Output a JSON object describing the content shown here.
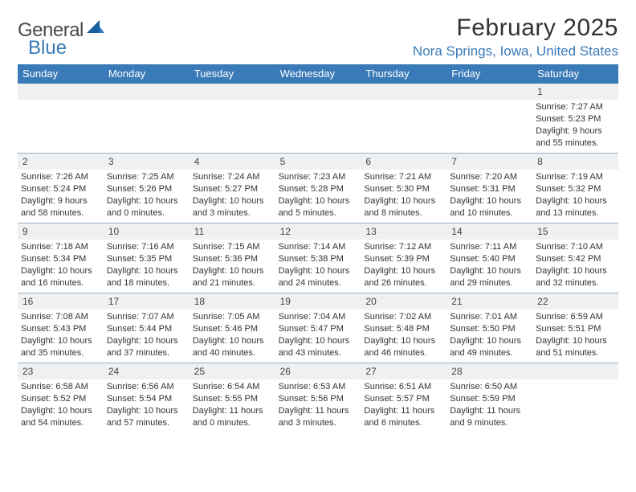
{
  "brand": {
    "word1": "General",
    "word2": "Blue"
  },
  "title": "February 2025",
  "location": "Nora Springs, Iowa, United States",
  "colors": {
    "header_bg": "#3a7ab8",
    "header_text": "#ffffff",
    "daynum_bg": "#eef0f2",
    "text": "#333333",
    "accent": "#3a7ab8",
    "divider": "#9aaec2"
  },
  "day_names": [
    "Sunday",
    "Monday",
    "Tuesday",
    "Wednesday",
    "Thursday",
    "Friday",
    "Saturday"
  ],
  "weeks": [
    [
      null,
      null,
      null,
      null,
      null,
      null,
      {
        "n": "1",
        "sunrise": "7:27 AM",
        "sunset": "5:23 PM",
        "day_h": "9",
        "day_m": "55"
      }
    ],
    [
      {
        "n": "2",
        "sunrise": "7:26 AM",
        "sunset": "5:24 PM",
        "day_h": "9",
        "day_m": "58"
      },
      {
        "n": "3",
        "sunrise": "7:25 AM",
        "sunset": "5:26 PM",
        "day_h": "10",
        "day_m": "0"
      },
      {
        "n": "4",
        "sunrise": "7:24 AM",
        "sunset": "5:27 PM",
        "day_h": "10",
        "day_m": "3"
      },
      {
        "n": "5",
        "sunrise": "7:23 AM",
        "sunset": "5:28 PM",
        "day_h": "10",
        "day_m": "5"
      },
      {
        "n": "6",
        "sunrise": "7:21 AM",
        "sunset": "5:30 PM",
        "day_h": "10",
        "day_m": "8"
      },
      {
        "n": "7",
        "sunrise": "7:20 AM",
        "sunset": "5:31 PM",
        "day_h": "10",
        "day_m": "10"
      },
      {
        "n": "8",
        "sunrise": "7:19 AM",
        "sunset": "5:32 PM",
        "day_h": "10",
        "day_m": "13"
      }
    ],
    [
      {
        "n": "9",
        "sunrise": "7:18 AM",
        "sunset": "5:34 PM",
        "day_h": "10",
        "day_m": "16"
      },
      {
        "n": "10",
        "sunrise": "7:16 AM",
        "sunset": "5:35 PM",
        "day_h": "10",
        "day_m": "18"
      },
      {
        "n": "11",
        "sunrise": "7:15 AM",
        "sunset": "5:36 PM",
        "day_h": "10",
        "day_m": "21"
      },
      {
        "n": "12",
        "sunrise": "7:14 AM",
        "sunset": "5:38 PM",
        "day_h": "10",
        "day_m": "24"
      },
      {
        "n": "13",
        "sunrise": "7:12 AM",
        "sunset": "5:39 PM",
        "day_h": "10",
        "day_m": "26"
      },
      {
        "n": "14",
        "sunrise": "7:11 AM",
        "sunset": "5:40 PM",
        "day_h": "10",
        "day_m": "29"
      },
      {
        "n": "15",
        "sunrise": "7:10 AM",
        "sunset": "5:42 PM",
        "day_h": "10",
        "day_m": "32"
      }
    ],
    [
      {
        "n": "16",
        "sunrise": "7:08 AM",
        "sunset": "5:43 PM",
        "day_h": "10",
        "day_m": "35"
      },
      {
        "n": "17",
        "sunrise": "7:07 AM",
        "sunset": "5:44 PM",
        "day_h": "10",
        "day_m": "37"
      },
      {
        "n": "18",
        "sunrise": "7:05 AM",
        "sunset": "5:46 PM",
        "day_h": "10",
        "day_m": "40"
      },
      {
        "n": "19",
        "sunrise": "7:04 AM",
        "sunset": "5:47 PM",
        "day_h": "10",
        "day_m": "43"
      },
      {
        "n": "20",
        "sunrise": "7:02 AM",
        "sunset": "5:48 PM",
        "day_h": "10",
        "day_m": "46"
      },
      {
        "n": "21",
        "sunrise": "7:01 AM",
        "sunset": "5:50 PM",
        "day_h": "10",
        "day_m": "49"
      },
      {
        "n": "22",
        "sunrise": "6:59 AM",
        "sunset": "5:51 PM",
        "day_h": "10",
        "day_m": "51"
      }
    ],
    [
      {
        "n": "23",
        "sunrise": "6:58 AM",
        "sunset": "5:52 PM",
        "day_h": "10",
        "day_m": "54"
      },
      {
        "n": "24",
        "sunrise": "6:56 AM",
        "sunset": "5:54 PM",
        "day_h": "10",
        "day_m": "57"
      },
      {
        "n": "25",
        "sunrise": "6:54 AM",
        "sunset": "5:55 PM",
        "day_h": "11",
        "day_m": "0"
      },
      {
        "n": "26",
        "sunrise": "6:53 AM",
        "sunset": "5:56 PM",
        "day_h": "11",
        "day_m": "3"
      },
      {
        "n": "27",
        "sunrise": "6:51 AM",
        "sunset": "5:57 PM",
        "day_h": "11",
        "day_m": "6"
      },
      {
        "n": "28",
        "sunrise": "6:50 AM",
        "sunset": "5:59 PM",
        "day_h": "11",
        "day_m": "9"
      },
      null
    ]
  ],
  "labels": {
    "sunrise": "Sunrise: ",
    "sunset": "Sunset: ",
    "daylight_pre": "Daylight: ",
    "daylight_mid": " hours and ",
    "daylight_post": " minutes."
  }
}
